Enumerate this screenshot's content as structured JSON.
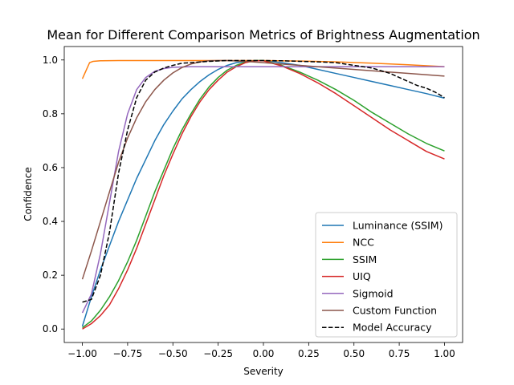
{
  "chart_data": {
    "type": "line",
    "title": "Mean for Different Comparison Metrics of Brightness Augmentation",
    "xlabel": "Severity",
    "ylabel": "Confidence",
    "xlim": [
      -1.1,
      1.1
    ],
    "ylim": [
      -0.05,
      1.05
    ],
    "xticks": [
      -1.0,
      -0.75,
      -0.5,
      -0.25,
      0.0,
      0.25,
      0.5,
      0.75,
      1.0
    ],
    "xtick_labels": [
      "−1.00",
      "−0.75",
      "−0.50",
      "−0.25",
      "0.00",
      "0.25",
      "0.50",
      "0.75",
      "1.00"
    ],
    "yticks": [
      0.0,
      0.2,
      0.4,
      0.6,
      0.8,
      1.0
    ],
    "ytick_labels": [
      "0.0",
      "0.2",
      "0.4",
      "0.6",
      "0.8",
      "1.0"
    ],
    "grid": false,
    "legend_position": "lower-right",
    "series": [
      {
        "name": "Luminance (SSIM)",
        "color": "#1f77b4",
        "dash": "solid",
        "x": [
          -1.0,
          -0.95,
          -0.9,
          -0.85,
          -0.8,
          -0.75,
          -0.7,
          -0.65,
          -0.6,
          -0.55,
          -0.5,
          -0.45,
          -0.4,
          -0.35,
          -0.3,
          -0.25,
          -0.2,
          -0.15,
          -0.1,
          -0.05,
          0.0,
          0.1,
          0.2,
          0.3,
          0.4,
          0.5,
          0.6,
          0.7,
          0.8,
          0.9,
          1.0
        ],
        "y": [
          0.01,
          0.12,
          0.22,
          0.31,
          0.4,
          0.48,
          0.56,
          0.63,
          0.7,
          0.76,
          0.81,
          0.855,
          0.89,
          0.92,
          0.945,
          0.965,
          0.98,
          0.99,
          0.995,
          0.997,
          0.998,
          0.99,
          0.98,
          0.965,
          0.95,
          0.935,
          0.92,
          0.905,
          0.89,
          0.875,
          0.858
        ]
      },
      {
        "name": "NCC",
        "color": "#ff7f0e",
        "dash": "solid",
        "x": [
          -1.0,
          -0.98,
          -0.96,
          -0.94,
          -0.9,
          -0.8,
          -0.6,
          -0.4,
          -0.2,
          0.0,
          0.2,
          0.4,
          0.6,
          0.8,
          1.0
        ],
        "y": [
          0.93,
          0.96,
          0.99,
          0.995,
          0.997,
          0.998,
          0.998,
          0.998,
          0.998,
          0.998,
          0.996,
          0.993,
          0.988,
          0.982,
          0.975
        ]
      },
      {
        "name": "SSIM",
        "color": "#2ca02c",
        "dash": "solid",
        "x": [
          -1.0,
          -0.95,
          -0.9,
          -0.85,
          -0.8,
          -0.75,
          -0.7,
          -0.65,
          -0.6,
          -0.55,
          -0.5,
          -0.45,
          -0.4,
          -0.35,
          -0.3,
          -0.25,
          -0.2,
          -0.15,
          -0.1,
          -0.05,
          0.0,
          0.1,
          0.2,
          0.3,
          0.4,
          0.5,
          0.6,
          0.7,
          0.8,
          0.9,
          1.0
        ],
        "y": [
          0.005,
          0.03,
          0.07,
          0.12,
          0.18,
          0.25,
          0.33,
          0.42,
          0.51,
          0.59,
          0.67,
          0.74,
          0.8,
          0.855,
          0.9,
          0.935,
          0.962,
          0.98,
          0.992,
          0.998,
          0.998,
          0.98,
          0.955,
          0.925,
          0.89,
          0.85,
          0.805,
          0.765,
          0.725,
          0.69,
          0.662
        ]
      },
      {
        "name": "UIQ",
        "color": "#d62728",
        "dash": "solid",
        "x": [
          -1.0,
          -0.95,
          -0.9,
          -0.85,
          -0.8,
          -0.75,
          -0.7,
          -0.65,
          -0.6,
          -0.55,
          -0.5,
          -0.45,
          -0.4,
          -0.35,
          -0.3,
          -0.25,
          -0.2,
          -0.15,
          -0.1,
          -0.05,
          0.0,
          0.1,
          0.2,
          0.3,
          0.4,
          0.5,
          0.6,
          0.7,
          0.8,
          0.9,
          1.0
        ],
        "y": [
          0.0,
          0.02,
          0.05,
          0.09,
          0.15,
          0.22,
          0.3,
          0.39,
          0.48,
          0.57,
          0.65,
          0.725,
          0.79,
          0.845,
          0.89,
          0.925,
          0.955,
          0.975,
          0.99,
          0.997,
          0.997,
          0.978,
          0.95,
          0.915,
          0.875,
          0.83,
          0.785,
          0.74,
          0.7,
          0.66,
          0.632
        ]
      },
      {
        "name": "Sigmoid",
        "color": "#9467bd",
        "dash": "solid",
        "x": [
          -1.0,
          -0.95,
          -0.9,
          -0.85,
          -0.8,
          -0.75,
          -0.7,
          -0.65,
          -0.6,
          -0.55,
          -0.5,
          -0.4,
          -0.3,
          -0.2,
          -0.1,
          0.0,
          0.2,
          0.4,
          0.6,
          0.8,
          1.0
        ],
        "y": [
          0.06,
          0.13,
          0.28,
          0.47,
          0.66,
          0.8,
          0.89,
          0.935,
          0.958,
          0.968,
          0.973,
          0.975,
          0.975,
          0.975,
          0.975,
          0.975,
          0.975,
          0.975,
          0.975,
          0.975,
          0.975
        ]
      },
      {
        "name": "Custom Function",
        "color": "#8c564b",
        "dash": "solid",
        "x": [
          -1.0,
          -0.95,
          -0.9,
          -0.85,
          -0.8,
          -0.75,
          -0.7,
          -0.65,
          -0.6,
          -0.55,
          -0.5,
          -0.45,
          -0.4,
          -0.35,
          -0.3,
          -0.25,
          -0.2,
          -0.1,
          0.0,
          0.2,
          0.4,
          0.6,
          0.8,
          1.0
        ],
        "y": [
          0.185,
          0.29,
          0.4,
          0.51,
          0.62,
          0.71,
          0.785,
          0.845,
          0.89,
          0.925,
          0.952,
          0.972,
          0.985,
          0.993,
          0.997,
          0.998,
          0.998,
          0.995,
          0.99,
          0.98,
          0.97,
          0.96,
          0.95,
          0.94
        ]
      },
      {
        "name": "Model Accuracy",
        "color": "#000000",
        "dash": "dashed",
        "x": [
          -1.0,
          -0.95,
          -0.9,
          -0.85,
          -0.8,
          -0.75,
          -0.7,
          -0.65,
          -0.6,
          -0.55,
          -0.5,
          -0.45,
          -0.4,
          -0.3,
          -0.2,
          -0.1,
          0.0,
          0.1,
          0.2,
          0.3,
          0.4,
          0.5,
          0.55,
          0.6,
          0.65,
          0.7,
          0.75,
          0.8,
          0.85,
          0.9,
          0.95,
          1.0
        ],
        "y": [
          0.1,
          0.11,
          0.2,
          0.36,
          0.58,
          0.74,
          0.86,
          0.925,
          0.955,
          0.97,
          0.98,
          0.988,
          0.99,
          0.995,
          0.998,
          0.998,
          0.998,
          0.997,
          0.995,
          0.993,
          0.99,
          0.98,
          0.975,
          0.97,
          0.96,
          0.95,
          0.935,
          0.92,
          0.905,
          0.895,
          0.88,
          0.86
        ]
      }
    ]
  }
}
